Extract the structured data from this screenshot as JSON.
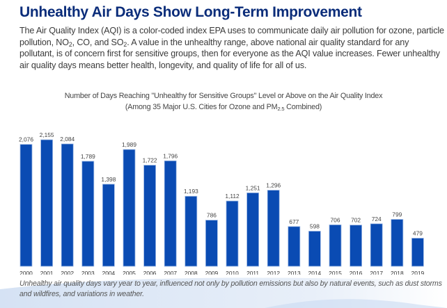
{
  "header": {
    "title": "Unhealthy Air Days Show Long-Term Improvement",
    "intro_parts": {
      "a": "The Air Quality Index (AQI) is a color-coded index EPA uses to communicate daily air pollution for ozone, particle pollution, NO",
      "sub1": "2",
      "b": ", CO, and SO",
      "sub2": "2",
      "c": ". A value in the unhealthy range, above national air quality standard for any pollutant, is of concern first for sensitive groups, then for everyone as the AQI value increases. Fewer unhealthy air quality days means better health, longevity, and quality of life for all of us."
    }
  },
  "colors": {
    "title": "#0b2d7a",
    "bar": "#0a4bb3",
    "bar_edge": "#9ab6e3",
    "swoosh": "#dbe6f5"
  },
  "chart_data": {
    "type": "bar",
    "title": "Number of Days Reaching \"Unhealthy for Sensitive Groups\" Level or Above on the Air Quality Index",
    "subtitle_parts": {
      "a": "(Among 35 Major U.S. Cities for Ozone and PM",
      "sub": "2.5",
      "b": " Combined)"
    },
    "xlabel": "",
    "ylabel": "",
    "ylim": [
      0,
      2155
    ],
    "grid": false,
    "legend": "none",
    "categories": [
      "2000",
      "2001",
      "2002",
      "2003",
      "2004",
      "2005",
      "2006",
      "2007",
      "2008",
      "2009",
      "2010",
      "2011",
      "2012",
      "2013",
      "2014",
      "2015",
      "2016",
      "2017",
      "2018",
      "2019"
    ],
    "values": [
      2076,
      2155,
      2084,
      1789,
      1398,
      1989,
      1722,
      1796,
      1193,
      786,
      1112,
      1251,
      1296,
      677,
      598,
      706,
      702,
      724,
      799,
      479
    ],
    "data_labels": [
      "2,076",
      "2,155",
      "2,084",
      "1,789",
      "1,398",
      "1,989",
      "1,722",
      "1,796",
      "1,193",
      "786",
      "1,112",
      "1,251",
      "1,296",
      "677",
      "598",
      "706",
      "702",
      "724",
      "799",
      "479"
    ]
  },
  "footer": {
    "caption": "Unhealthy air quality days vary year to year, influenced not only by pollution emissions but also by natural events, such as dust storms and wildfires, and variations in weather."
  }
}
